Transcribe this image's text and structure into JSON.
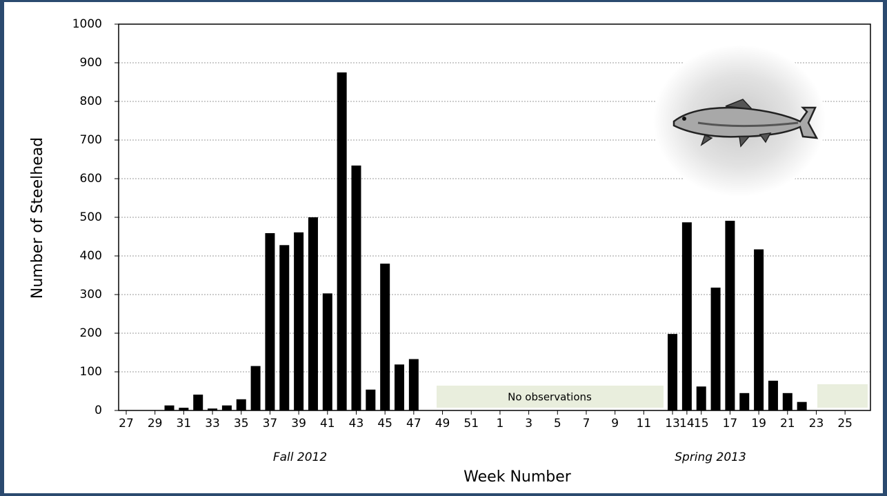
{
  "chart_data": {
    "type": "bar",
    "y_label": "Number of Steelhead",
    "x_label": "Week Number",
    "categories": [
      "27",
      null,
      "29",
      null,
      "31",
      null,
      "33",
      null,
      "35",
      null,
      "37",
      null,
      "39",
      null,
      "41",
      null,
      "43",
      null,
      "45",
      null,
      "47",
      null,
      "49",
      null,
      "51",
      null,
      "1",
      null,
      "3",
      null,
      "5",
      null,
      "7",
      null,
      "9",
      null,
      "11",
      null,
      "13",
      "14",
      "15",
      null,
      "17",
      null,
      "19",
      null,
      "21",
      null,
      "23",
      null,
      "25",
      null
    ],
    "values": [
      0,
      0,
      0,
      13,
      7,
      41,
      5,
      13,
      29,
      115,
      459,
      428,
      461,
      500,
      303,
      875,
      634,
      54,
      380,
      119,
      133,
      null,
      null,
      null,
      null,
      null,
      null,
      null,
      null,
      null,
      null,
      null,
      null,
      null,
      null,
      null,
      null,
      null,
      198,
      487,
      62,
      318,
      491,
      45,
      417,
      77,
      45,
      22,
      null,
      null,
      null,
      null
    ],
    "color": "#000000",
    "ylim": [
      0,
      1000
    ],
    "yticks": [
      0,
      100,
      200,
      300,
      400,
      500,
      600,
      700,
      800,
      900,
      1000
    ],
    "grid": true,
    "annotations": [
      "No observations",
      "Fall 2012",
      "Spring 2013"
    ]
  }
}
